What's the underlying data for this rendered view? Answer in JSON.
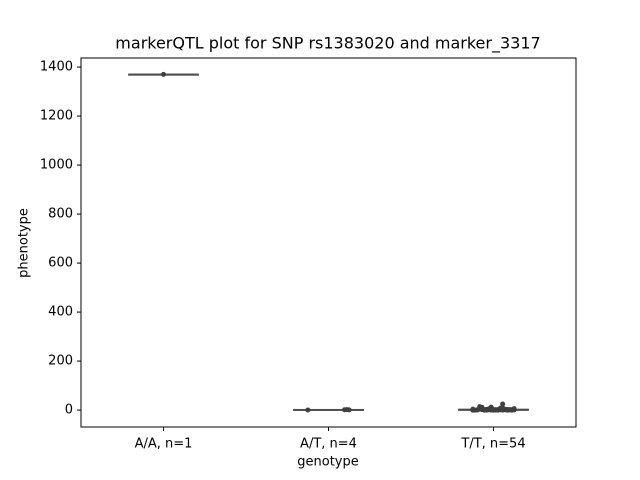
{
  "chart_data": {
    "type": "box",
    "title": "markerQTL plot for SNP rs1383020 and marker_3317",
    "x_label": "genotype",
    "y_label": "phenotype",
    "categories": [
      "A/A, n=1",
      "A/T, n=4",
      "T/T, n=54"
    ],
    "boxes": [
      {
        "min": 1370,
        "q1": 1370,
        "median": 1370,
        "q3": 1370,
        "max": 1370
      },
      {
        "min": 0.5,
        "q1": 0.9,
        "median": 1.25,
        "q3": 1.6,
        "max": 2
      },
      {
        "min": 0,
        "q1": 0,
        "median": 1,
        "q3": 2.75,
        "max": 6
      }
    ],
    "points": [
      [
        1370
      ],
      [
        0.5,
        1,
        2,
        1.5
      ],
      [
        0,
        1,
        0,
        2,
        3,
        1,
        0,
        5,
        2,
        1,
        0,
        12,
        3,
        1,
        0,
        2,
        4,
        1,
        0,
        0,
        6,
        2,
        1,
        0,
        3,
        25,
        8,
        1,
        0,
        2,
        0,
        1,
        3,
        0,
        2,
        14,
        1,
        0,
        4,
        2,
        0,
        1,
        0,
        3,
        9,
        1,
        0,
        2,
        0,
        1,
        5,
        0,
        2,
        11
      ]
    ],
    "box_color": "#4c4c4c",
    "point_color": "#3f3f3f",
    "ylim": [
      -69,
      1437
    ],
    "yticks": [
      0,
      200,
      400,
      600,
      800,
      1000,
      1200,
      1400
    ]
  }
}
